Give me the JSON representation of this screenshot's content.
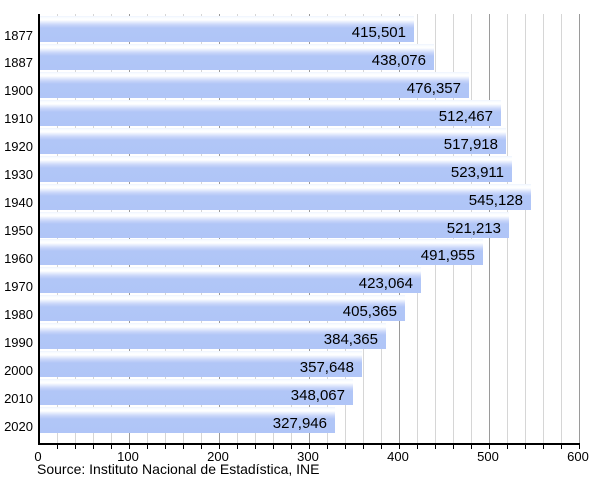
{
  "chart_data": {
    "type": "bar",
    "orientation": "horizontal",
    "title": "",
    "xlabel": "",
    "ylabel": "",
    "categories": [
      "1877",
      "1887",
      "1900",
      "1910",
      "1920",
      "1930",
      "1940",
      "1950",
      "1960",
      "1970",
      "1980",
      "1990",
      "2000",
      "2010",
      "2020"
    ],
    "values": [
      415501,
      438076,
      476357,
      512467,
      517918,
      523911,
      545128,
      521213,
      491955,
      423064,
      405365,
      384365,
      357648,
      348067,
      327946
    ],
    "value_labels": [
      "415,501",
      "438,076",
      "476,357",
      "512,467",
      "517,918",
      "523,911",
      "545,128",
      "521,213",
      "491,955",
      "423,064",
      "405,365",
      "384,365",
      "357,648",
      "348,067",
      "327,946"
    ],
    "x_tick_labels": [
      "0",
      "100",
      "200",
      "300",
      "400",
      "500",
      "600"
    ],
    "x_tick_values_thousands": [
      0,
      100,
      200,
      300,
      400,
      500,
      600
    ],
    "xlim_thousands": [
      0,
      600
    ],
    "grid": "on",
    "legend": "none",
    "bar_color": "#b0c5f7",
    "minor_grid_color": "#d6d6d6",
    "major_grid_color": "#9a9a9a",
    "axis_color": "#000000"
  },
  "footer": {
    "source": "Source: Instituto Nacional de Estadística, INE"
  }
}
